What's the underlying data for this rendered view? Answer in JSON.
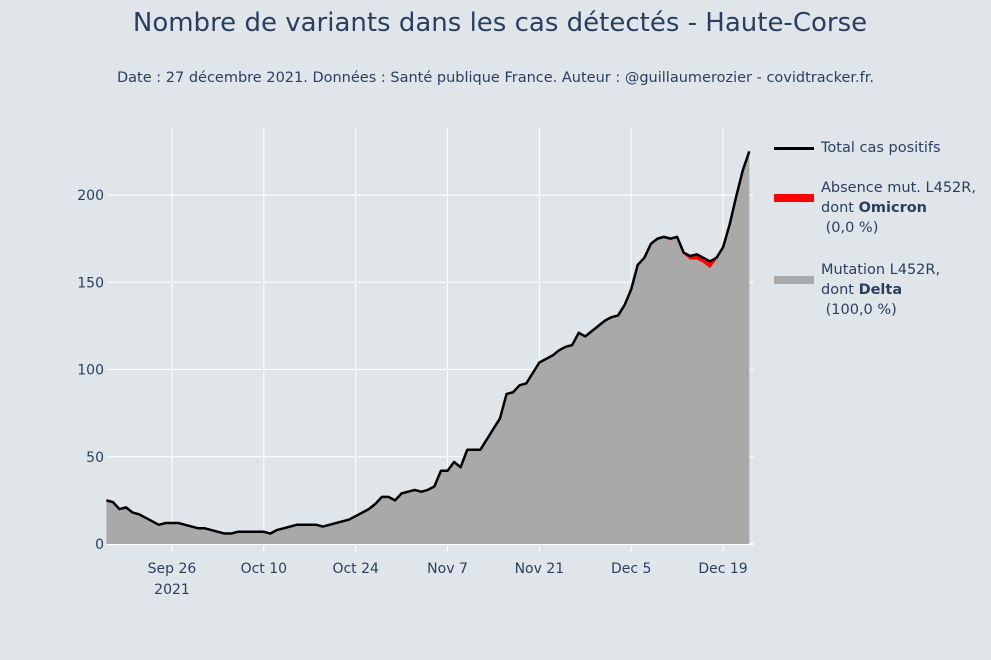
{
  "header": {
    "title": "Nombre de variants dans les cas détectés - Haute-Corse",
    "subtitle": "Date : 27 décembre 2021. Données : Santé publique France. Auteur : @guillaumerozier - covidtracker.fr."
  },
  "legend": {
    "items": [
      {
        "name": "total",
        "line1": "Total cas positifs",
        "line2_prefix": "",
        "line2_bold": "",
        "line3": "",
        "color": "#000000"
      },
      {
        "name": "omicron",
        "line1": "Absence mut. L452R,",
        "line2_prefix": "dont ",
        "line2_bold": "Omicron",
        "line3": " (0,0 %)",
        "color": "#ff0000"
      },
      {
        "name": "delta",
        "line1": "Mutation L452R,",
        "line2_prefix": "dont ",
        "line2_bold": "Delta",
        "line3": " (100,0 %)",
        "color": "#a9a9a9"
      }
    ]
  },
  "axes": {
    "y_ticks": [
      "0",
      "50",
      "100",
      "150",
      "200"
    ],
    "x_ticks": [
      "Sep 26",
      "Oct 10",
      "Oct 24",
      "Nov 7",
      "Nov 21",
      "Dec 5",
      "Dec 19"
    ],
    "x_year_label": "2021"
  },
  "chart_data": {
    "type": "area",
    "title": "Nombre de variants dans les cas détectés - Haute-Corse",
    "subtitle": "Date : 27 décembre 2021. Données : Santé publique France. Auteur : @guillaumerozier - covidtracker.fr.",
    "xlabel": "",
    "ylabel": "",
    "ylim": [
      0,
      230
    ],
    "grid": true,
    "legend_position": "right",
    "x_start": "2021-09-16",
    "x_end": "2021-12-23",
    "x_tick_labels": [
      "Sep 26 2021",
      "Oct 10",
      "Oct 24",
      "Nov 7",
      "Nov 21",
      "Dec 5",
      "Dec 19"
    ],
    "y_tick_labels": [
      0,
      50,
      100,
      150,
      200
    ],
    "series": [
      {
        "name": "Total cas positifs",
        "type": "line",
        "color": "#000000",
        "values": [
          25,
          24,
          20,
          21,
          18,
          17,
          15,
          13,
          11,
          12,
          12,
          12,
          11,
          10,
          9,
          9,
          8,
          7,
          6,
          6,
          7,
          7,
          7,
          7,
          7,
          6,
          8,
          9,
          10,
          11,
          11,
          11,
          11,
          10,
          11,
          12,
          13,
          14,
          16,
          18,
          20,
          23,
          27,
          27,
          25,
          29,
          30,
          31,
          30,
          31,
          33,
          42,
          42,
          47,
          44,
          54,
          54,
          54,
          60,
          66,
          72,
          86,
          87,
          91,
          92,
          98,
          104,
          106,
          108,
          111,
          113,
          114,
          121,
          119,
          122,
          125,
          128,
          130,
          131,
          137,
          146,
          160,
          164,
          172,
          175,
          176,
          175,
          176,
          167,
          165,
          166,
          164,
          162,
          164,
          170,
          183,
          199,
          214,
          225
        ]
      },
      {
        "name": "Absence mut. L452R, dont Omicron (0,0 %)",
        "type": "area",
        "color": "#ff0000",
        "share_pct": 0.0,
        "values": [
          0,
          0,
          0,
          0,
          0,
          0,
          0,
          0,
          0,
          0,
          0,
          0,
          0,
          0,
          0,
          0,
          0,
          0,
          0,
          0,
          0,
          0,
          0,
          0,
          0,
          0,
          0,
          0,
          0,
          0,
          0,
          0,
          0,
          0,
          0,
          0,
          0,
          0,
          0,
          0,
          0,
          0,
          0,
          0,
          0,
          0,
          0,
          0,
          0,
          0,
          0,
          0,
          0,
          0,
          0,
          0,
          0,
          0,
          0,
          0,
          0,
          0,
          0,
          0,
          0,
          0,
          0,
          0,
          0,
          0,
          0,
          0,
          0,
          0,
          0,
          0,
          0,
          0,
          0,
          0,
          0,
          0,
          0,
          0,
          0,
          0,
          1,
          0,
          1,
          2,
          3,
          3,
          4,
          1,
          0,
          0,
          0,
          0,
          0
        ]
      },
      {
        "name": "Mutation L452R, dont Delta (100,0 %)",
        "type": "area",
        "color": "#a9a9a9",
        "share_pct": 100.0,
        "values": [
          25,
          24,
          20,
          21,
          18,
          17,
          15,
          13,
          11,
          12,
          12,
          12,
          11,
          10,
          9,
          9,
          8,
          7,
          6,
          6,
          7,
          7,
          7,
          7,
          7,
          6,
          8,
          9,
          10,
          11,
          11,
          11,
          11,
          10,
          11,
          12,
          13,
          14,
          16,
          18,
          20,
          23,
          27,
          27,
          25,
          29,
          30,
          31,
          30,
          31,
          33,
          42,
          42,
          47,
          44,
          54,
          54,
          54,
          60,
          66,
          72,
          86,
          87,
          91,
          92,
          98,
          104,
          106,
          108,
          111,
          113,
          114,
          121,
          119,
          122,
          125,
          128,
          130,
          131,
          137,
          146,
          160,
          164,
          172,
          175,
          176,
          174,
          176,
          166,
          163,
          163,
          161,
          158,
          163,
          170,
          183,
          199,
          214,
          225
        ]
      }
    ]
  }
}
